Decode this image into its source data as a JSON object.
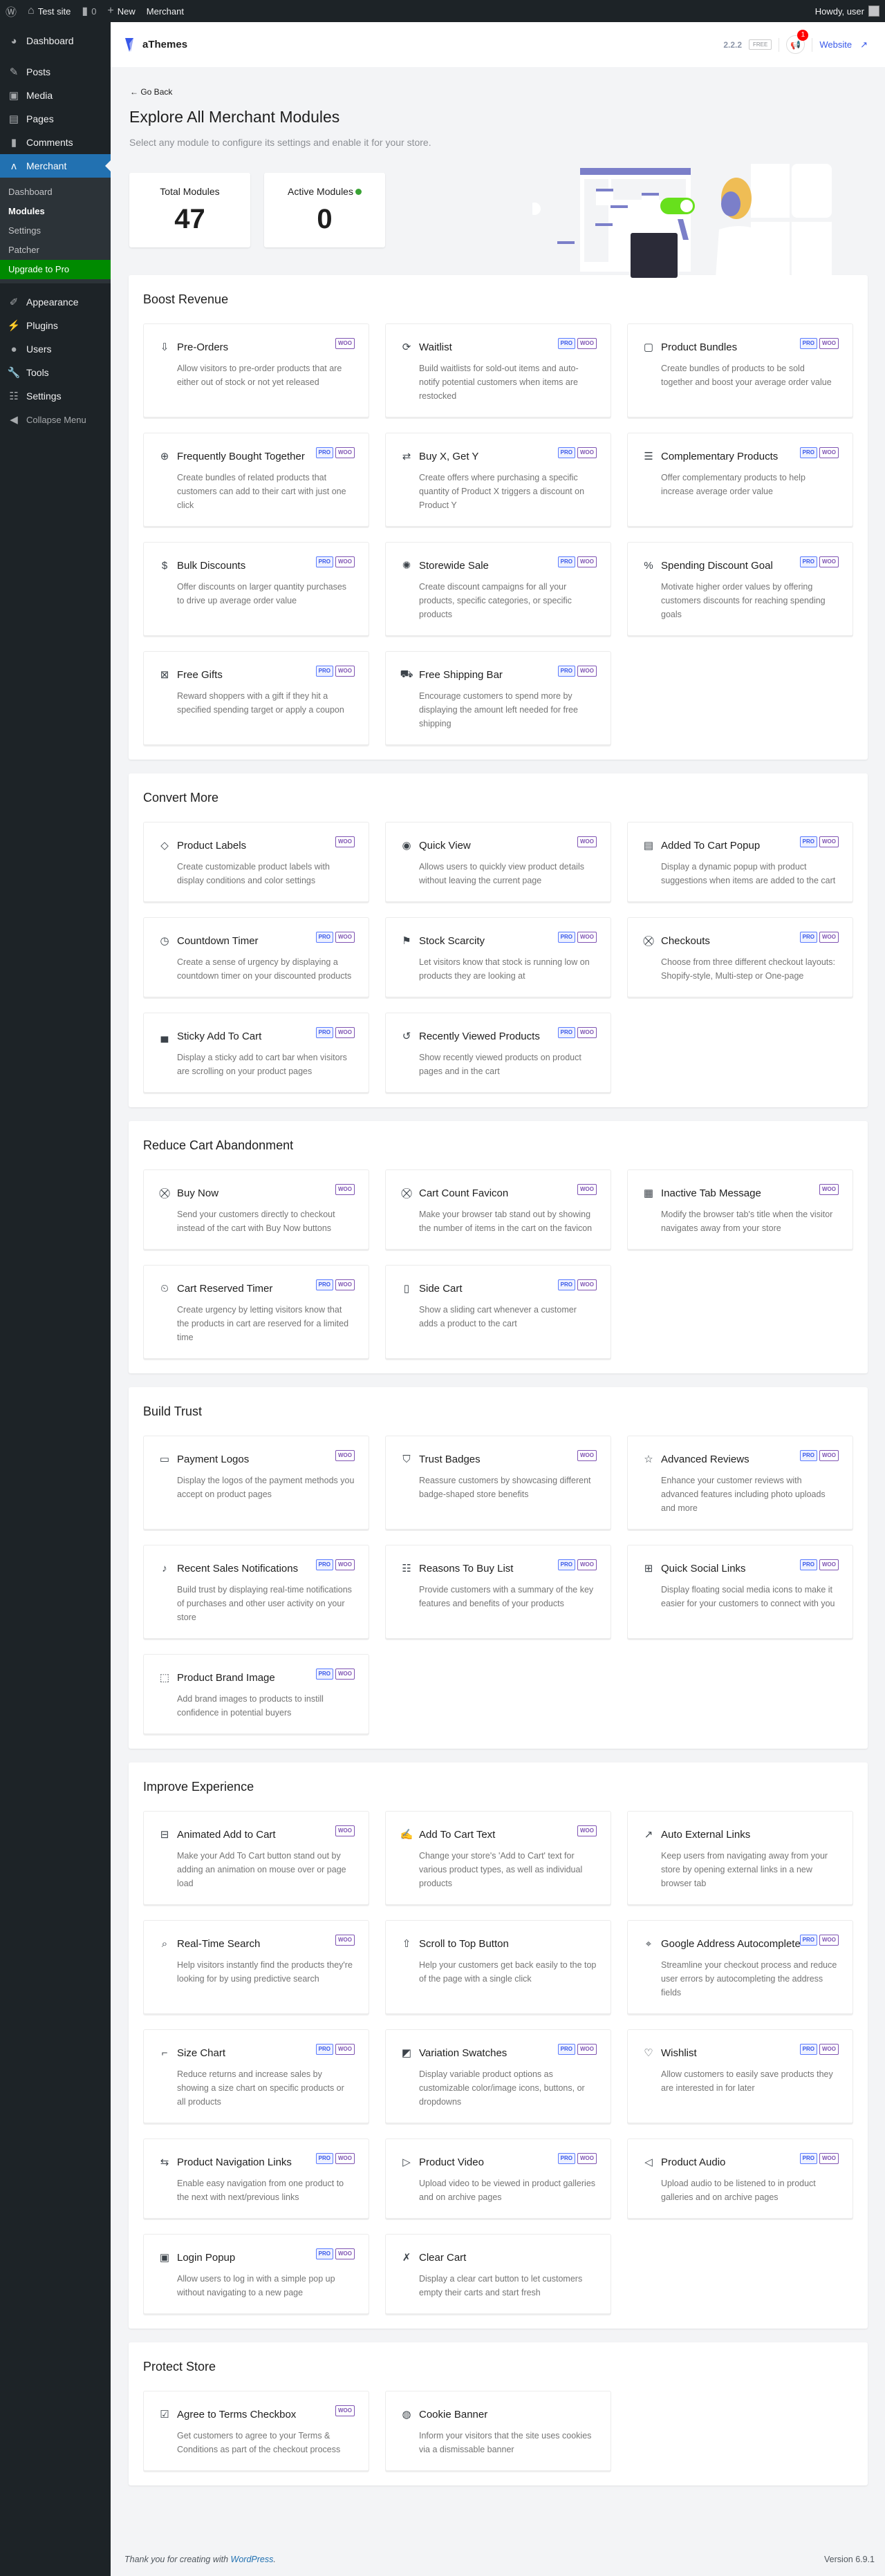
{
  "adminbar": {
    "site": "Test site",
    "comments": "0",
    "new": "New",
    "merchant": "Merchant",
    "howdy": "Howdy, user"
  },
  "sidebar": {
    "items": [
      {
        "label": "Dashboard",
        "icon": "dashboard-icon"
      },
      {
        "label": "Posts",
        "icon": "pin-icon"
      },
      {
        "label": "Media",
        "icon": "media-icon"
      },
      {
        "label": "Pages",
        "icon": "page-icon"
      },
      {
        "label": "Comments",
        "icon": "comment-icon"
      },
      {
        "label": "Merchant",
        "icon": "merchant-icon"
      }
    ],
    "submenu": [
      "Dashboard",
      "Modules",
      "Settings",
      "Patcher",
      "Upgrade to Pro"
    ],
    "items2": [
      {
        "label": "Appearance",
        "icon": "brush-icon"
      },
      {
        "label": "Plugins",
        "icon": "plugin-icon"
      },
      {
        "label": "Users",
        "icon": "user-icon"
      },
      {
        "label": "Tools",
        "icon": "wrench-icon"
      },
      {
        "label": "Settings",
        "icon": "settings-icon"
      }
    ],
    "collapse": "Collapse Menu"
  },
  "header": {
    "logo": "aThemes",
    "version": "2.2.2",
    "plan": "FREE",
    "notifications": "1",
    "website": "Website"
  },
  "intro": {
    "go_back": "Go Back",
    "title": "Explore All Merchant Modules",
    "subtitle": "Select any module to configure its settings and enable it for your store.",
    "total_label": "Total Modules",
    "total": "47",
    "active_label": "Active Modules",
    "active": "0"
  },
  "badge_labels": {
    "pro": "PRO",
    "woo": "WOO"
  },
  "colors": {
    "accent": "#2271b1",
    "pro": "#3858e9",
    "woo": "#7f54b3",
    "upgrade": "#008a00",
    "active_dot": "#3aa335"
  },
  "sections": [
    {
      "title": "Boost Revenue",
      "modules": [
        {
          "title": "Pre-Orders",
          "desc": "Allow visitors to pre-order products that are either out of stock or not yet released",
          "pro": false,
          "icon": "download-box-icon"
        },
        {
          "title": "Waitlist",
          "desc": "Build waitlists for sold-out items and auto-notify potential customers when items are restocked",
          "pro": true,
          "icon": "bag-refresh-icon"
        },
        {
          "title": "Product Bundles",
          "desc": "Create bundles of products to be sold together and boost your average order value",
          "pro": true,
          "icon": "box-icon"
        },
        {
          "title": "Frequently Bought Together",
          "desc": "Create bundles of related products that customers can add to their cart with just one click",
          "pro": true,
          "icon": "bag-plus-icon"
        },
        {
          "title": "Buy X, Get Y",
          "desc": "Create offers where purchasing a specific quantity of Product X triggers a discount on Product Y",
          "pro": true,
          "icon": "exchange-icon"
        },
        {
          "title": "Complementary Products",
          "desc": "Offer complementary products to help increase average order value",
          "pro": true,
          "icon": "list-icon"
        },
        {
          "title": "Bulk Discounts",
          "desc": "Offer discounts on larger quantity purchases to drive up average order value",
          "pro": true,
          "icon": "money-bag-icon"
        },
        {
          "title": "Storewide Sale",
          "desc": "Create discount campaigns for all your products, specific categories, or specific products",
          "pro": true,
          "icon": "discount-badge-icon"
        },
        {
          "title": "Spending Discount Goal",
          "desc": "Motivate higher order values by offering customers discounts for reaching spending goals",
          "pro": true,
          "icon": "cart-percent-icon"
        },
        {
          "title": "Free Gifts",
          "desc": "Reward shoppers with a gift if they hit a specified spending target or apply a coupon",
          "pro": true,
          "icon": "gift-icon"
        },
        {
          "title": "Free Shipping Bar",
          "desc": "Encourage customers to spend more by displaying the amount left needed for free shipping",
          "pro": true,
          "icon": "truck-icon"
        }
      ]
    },
    {
      "title": "Convert More",
      "modules": [
        {
          "title": "Product Labels",
          "desc": "Create customizable product labels with display conditions and color settings",
          "pro": false,
          "icon": "tag-icon"
        },
        {
          "title": "Quick View",
          "desc": "Allows users to quickly view product details without leaving the current page",
          "pro": false,
          "icon": "eye-icon"
        },
        {
          "title": "Added To Cart Popup",
          "desc": "Display a dynamic popup with product suggestions when items are added to the cart",
          "pro": true,
          "icon": "popup-icon"
        },
        {
          "title": "Countdown Timer",
          "desc": "Create a sense of urgency by displaying a countdown timer on your discounted products",
          "pro": true,
          "icon": "clock-icon"
        },
        {
          "title": "Stock Scarcity",
          "desc": "Let visitors know that stock is running low on products they are looking at",
          "pro": true,
          "icon": "flag-icon"
        },
        {
          "title": "Checkouts",
          "desc": "Choose from three different checkout layouts: Shopify-style, Multi-step or One-page",
          "pro": true,
          "icon": "cart-icon"
        },
        {
          "title": "Sticky Add To Cart",
          "desc": "Display a sticky add to cart bar when visitors are scrolling on your product pages",
          "pro": true,
          "icon": "sticky-bar-icon"
        },
        {
          "title": "Recently Viewed Products",
          "desc": "Show recently viewed products on product pages and in the cart",
          "pro": true,
          "icon": "history-icon"
        }
      ]
    },
    {
      "title": "Reduce Cart Abandonment",
      "modules": [
        {
          "title": "Buy Now",
          "desc": "Send your customers directly to checkout instead of the cart with Buy Now buttons",
          "pro": false,
          "icon": "cart-icon"
        },
        {
          "title": "Cart Count Favicon",
          "desc": "Make your browser tab stand out by showing the number of items in the cart on the favicon",
          "pro": false,
          "icon": "cart-icon"
        },
        {
          "title": "Inactive Tab Message",
          "desc": "Modify the browser tab's title when the visitor navigates away from your store",
          "pro": false,
          "icon": "tab-icon"
        },
        {
          "title": "Cart Reserved Timer",
          "desc": "Create urgency by letting visitors know that the products in cart are reserved for a limited time",
          "pro": true,
          "icon": "cart-clock-icon"
        },
        {
          "title": "Side Cart",
          "desc": "Show a sliding cart whenever a customer adds a product to the cart",
          "pro": true,
          "icon": "side-panel-icon"
        }
      ]
    },
    {
      "title": "Build Trust",
      "modules": [
        {
          "title": "Payment Logos",
          "desc": "Display the logos of the payment methods you accept on product pages",
          "pro": false,
          "icon": "payment-icon"
        },
        {
          "title": "Trust Badges",
          "desc": "Reassure customers by showcasing different badge-shaped store benefits",
          "pro": false,
          "icon": "shield-icon"
        },
        {
          "title": "Advanced Reviews",
          "desc": "Enhance your customer reviews with advanced features including photo uploads and more",
          "pro": true,
          "icon": "star-icon"
        },
        {
          "title": "Recent Sales Notifications",
          "desc": "Build trust by displaying real-time notifications of purchases and other user activity on your store",
          "pro": true,
          "icon": "bell-icon"
        },
        {
          "title": "Reasons To Buy List",
          "desc": "Provide customers with a summary of the key features and benefits of your products",
          "pro": true,
          "icon": "checklist-icon"
        },
        {
          "title": "Quick Social Links",
          "desc": "Display floating social media icons to make it easier for your customers to connect with you",
          "pro": true,
          "icon": "social-grid-icon"
        },
        {
          "title": "Product Brand Image",
          "desc": "Add brand images to products to instill confidence in potential buyers",
          "pro": true,
          "icon": "brand-image-icon"
        }
      ]
    },
    {
      "title": "Improve Experience",
      "modules": [
        {
          "title": "Animated Add to Cart",
          "desc": "Make your Add To Cart button stand out by adding an animation on mouse over or page load",
          "pro": false,
          "icon": "animated-button-icon"
        },
        {
          "title": "Add To Cart Text",
          "desc": "Change your store's 'Add to Cart' text for various product types, as well as individual products",
          "pro": false,
          "icon": "edit-text-icon"
        },
        {
          "title": "Auto External Links",
          "desc": "Keep users from navigating away from your store by opening external links in a new browser tab",
          "pro": null,
          "icon": "external-link-icon"
        },
        {
          "title": "Real-Time Search",
          "desc": "Help visitors instantly find the products they're looking for by using predictive search",
          "pro": false,
          "icon": "search-icon"
        },
        {
          "title": "Scroll to Top Button",
          "desc": "Help your customers get back easily to the top of the page with a single click",
          "pro": null,
          "icon": "arrow-up-icon"
        },
        {
          "title": "Google Address Autocomplete",
          "desc": "Streamline your checkout process and reduce user errors by autocompleting the address fields",
          "pro": true,
          "icon": "map-pin-icon"
        },
        {
          "title": "Size Chart",
          "desc": "Reduce returns and increase sales by showing a size chart on specific products or all products",
          "pro": true,
          "icon": "ruler-icon"
        },
        {
          "title": "Variation Swatches",
          "desc": "Display variable product options as customizable color/image icons, buttons, or dropdowns",
          "pro": true,
          "icon": "swatches-icon"
        },
        {
          "title": "Wishlist",
          "desc": "Allow customers to easily save products they are interested in for later",
          "pro": true,
          "icon": "heart-bag-icon"
        },
        {
          "title": "Product Navigation Links",
          "desc": "Enable easy navigation from one product to the next with next/previous links",
          "pro": true,
          "icon": "navigation-icon"
        },
        {
          "title": "Product Video",
          "desc": "Upload video to be viewed in product galleries and on archive pages",
          "pro": true,
          "icon": "play-icon"
        },
        {
          "title": "Product Audio",
          "desc": "Upload audio to be listened to in product galleries and on archive pages",
          "pro": true,
          "icon": "speaker-icon"
        },
        {
          "title": "Login Popup",
          "desc": "Allow users to log in with a simple pop up without navigating to a new page",
          "pro": true,
          "icon": "login-icon"
        },
        {
          "title": "Clear Cart",
          "desc": "Display a clear cart button to let customers empty their carts and start fresh",
          "pro": null,
          "icon": "cart-x-icon"
        }
      ]
    },
    {
      "title": "Protect Store",
      "modules": [
        {
          "title": "Agree to Terms Checkbox",
          "desc": "Get customers to agree to your Terms & Conditions as part of the checkout process",
          "pro": false,
          "icon": "checkbox-icon"
        },
        {
          "title": "Cookie Banner",
          "desc": "Inform your visitors that the site uses cookies via a dismissable banner",
          "pro": null,
          "icon": "cookie-icon"
        }
      ]
    }
  ],
  "footer": {
    "thanks": "Thank you for creating with ",
    "wp": "WordPress",
    "period": ".",
    "version": "Version 6.9.1"
  }
}
